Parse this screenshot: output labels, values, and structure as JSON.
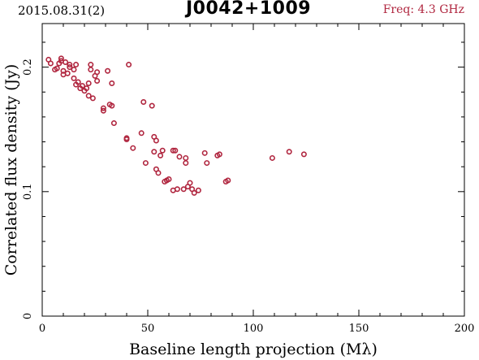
{
  "header": {
    "date": "2015.08.31(2)",
    "source": "J0042+1009",
    "freq": "Freq: 4.3 GHz"
  },
  "colors": {
    "points": "#b0263f",
    "axis": "#000000"
  },
  "chart_data": {
    "type": "scatter",
    "xlabel": "Baseline length projection (Mλ)",
    "ylabel": "Correlated flux density (Jy)",
    "xlim": [
      0,
      200
    ],
    "ylim": [
      0,
      0.235
    ],
    "xticks": [
      0,
      50,
      100,
      150,
      200
    ],
    "xtick_labels": [
      "0",
      "50",
      "100",
      "150",
      "200"
    ],
    "yticks": [
      0,
      0.1,
      0.2
    ],
    "ytick_labels": [
      "0",
      "0.1",
      "0.2"
    ],
    "grid": false,
    "points": [
      [
        3,
        0.206
      ],
      [
        4,
        0.203
      ],
      [
        6,
        0.198
      ],
      [
        7,
        0.199
      ],
      [
        8,
        0.203
      ],
      [
        9,
        0.207
      ],
      [
        9,
        0.205
      ],
      [
        10,
        0.197
      ],
      [
        10,
        0.194
      ],
      [
        11,
        0.204
      ],
      [
        12,
        0.195
      ],
      [
        13,
        0.2
      ],
      [
        13,
        0.202
      ],
      [
        15,
        0.198
      ],
      [
        15,
        0.191
      ],
      [
        16,
        0.202
      ],
      [
        16,
        0.186
      ],
      [
        17,
        0.188
      ],
      [
        18,
        0.183
      ],
      [
        19,
        0.185
      ],
      [
        20,
        0.181
      ],
      [
        21,
        0.183
      ],
      [
        22,
        0.187
      ],
      [
        22,
        0.177
      ],
      [
        23,
        0.202
      ],
      [
        23,
        0.198
      ],
      [
        24,
        0.175
      ],
      [
        25,
        0.193
      ],
      [
        26,
        0.196
      ],
      [
        26,
        0.189
      ],
      [
        29,
        0.167
      ],
      [
        29,
        0.165
      ],
      [
        31,
        0.197
      ],
      [
        32,
        0.17
      ],
      [
        33,
        0.169
      ],
      [
        33,
        0.187
      ],
      [
        34,
        0.155
      ],
      [
        40,
        0.143
      ],
      [
        40,
        0.142
      ],
      [
        41,
        0.202
      ],
      [
        43,
        0.135
      ],
      [
        47,
        0.147
      ],
      [
        48,
        0.172
      ],
      [
        49,
        0.123
      ],
      [
        52,
        0.169
      ],
      [
        53,
        0.132
      ],
      [
        53,
        0.144
      ],
      [
        54,
        0.141
      ],
      [
        54,
        0.118
      ],
      [
        55,
        0.115
      ],
      [
        56,
        0.129
      ],
      [
        57,
        0.133
      ],
      [
        58,
        0.108
      ],
      [
        59,
        0.109
      ],
      [
        60,
        0.11
      ],
      [
        62,
        0.101
      ],
      [
        62,
        0.133
      ],
      [
        63,
        0.133
      ],
      [
        64,
        0.102
      ],
      [
        65,
        0.128
      ],
      [
        67,
        0.102
      ],
      [
        68,
        0.123
      ],
      [
        68,
        0.127
      ],
      [
        69,
        0.104
      ],
      [
        70,
        0.107
      ],
      [
        71,
        0.102
      ],
      [
        72,
        0.099
      ],
      [
        74,
        0.101
      ],
      [
        77,
        0.131
      ],
      [
        78,
        0.123
      ],
      [
        83,
        0.129
      ],
      [
        84,
        0.13
      ],
      [
        87,
        0.108
      ],
      [
        88,
        0.109
      ],
      [
        109,
        0.127
      ],
      [
        117,
        0.132
      ],
      [
        124,
        0.13
      ]
    ]
  }
}
